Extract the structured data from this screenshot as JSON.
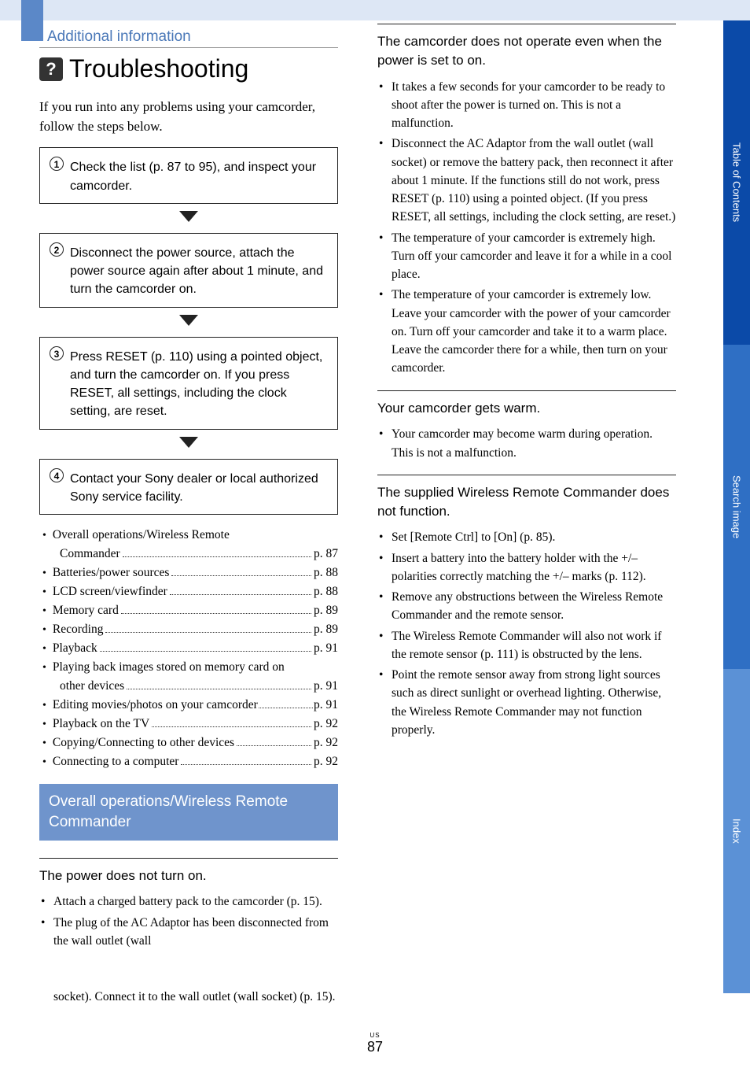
{
  "header": {
    "section_label": "Additional information",
    "title": "Troubleshooting",
    "icon_glyph": "?"
  },
  "intro": "If you run into any problems using your camcorder, follow the steps below.",
  "steps": [
    {
      "num": "1",
      "text": "Check the list (p. 87 to 95), and inspect your camcorder."
    },
    {
      "num": "2",
      "text": "Disconnect the power source, attach the power source again after about 1 minute, and turn the camcorder on."
    },
    {
      "num": "3",
      "text": "Press RESET (p. 110) using a pointed object, and turn the camcorder on. If you press RESET, all settings, including the clock setting, are reset."
    },
    {
      "num": "4",
      "text": "Contact your Sony dealer or local authorized Sony service facility."
    }
  ],
  "toc": [
    {
      "label": "Overall operations/Wireless Remote Commander",
      "page": "p. 87",
      "wrap_after": "Commander"
    },
    {
      "label": "Batteries/power sources ",
      "page": "p. 88"
    },
    {
      "label": "LCD screen/viewfinder",
      "page": "p. 88"
    },
    {
      "label": "Memory card",
      "page": "p. 89"
    },
    {
      "label": "Recording",
      "page": "p. 89"
    },
    {
      "label": "Playback",
      "page": "p. 91"
    },
    {
      "label": "Playing back images stored on memory card on other devices",
      "page": "p. 91",
      "wrap_after": "other devices"
    },
    {
      "label": "Editing movies/photos on your camcorder",
      "page": "p. 91",
      "tight": true
    },
    {
      "label": "Playback on the TV",
      "page": "p. 92"
    },
    {
      "label": "Copying/Connecting to other devices",
      "page": "p. 92"
    },
    {
      "label": "Connecting to a computer",
      "page": "p. 92"
    }
  ],
  "subsection_heading": "Overall operations/Wireless Remote Commander",
  "col2_continuation": "socket). Connect it to the wall outlet (wall socket) (p. 15).",
  "problems": [
    {
      "title": "The power does not turn on.",
      "items": [
        "Attach a charged battery pack to the camcorder (p. 15).",
        "The plug of the AC Adaptor has been disconnected from the wall outlet (wall"
      ]
    },
    {
      "title": "The camcorder does not operate even when the power is set to on.",
      "items": [
        "It takes a few seconds for your camcorder to be ready to shoot after the power is turned on. This is not a malfunction.",
        "Disconnect the AC Adaptor from the wall outlet (wall socket) or remove the battery pack, then reconnect it after about 1 minute. If the functions still do not work, press RESET (p. 110) using a pointed object. (If you press RESET, all settings, including the clock setting, are reset.)",
        "The temperature of your camcorder is extremely high. Turn off your camcorder and leave it for a while in a cool place.",
        "The temperature of your camcorder is extremely low. Leave your camcorder with the power of your camcorder on. Turn off your camcorder and take it to a warm place. Leave the camcorder there for a while, then turn on your camcorder."
      ]
    },
    {
      "title": "Your camcorder gets warm.",
      "items": [
        "Your camcorder may become warm during operation. This is not a malfunction."
      ]
    },
    {
      "title": "The supplied Wireless Remote Commander does not function.",
      "items": [
        "Set [Remote Ctrl] to [On] (p. 85).",
        "Insert a battery into the battery holder with the +/– polarities correctly matching the +/– marks (p. 112).",
        "Remove any obstructions between the Wireless Remote Commander and the remote sensor.",
        "The Wireless Remote Commander will also not work if the remote sensor (p. 111) is obstructed by the lens.",
        "Point the remote sensor away from strong light sources such as direct sunlight or overhead lighting. Otherwise, the Wireless Remote Commander may not function properly."
      ]
    }
  ],
  "side_tabs": [
    "Table of Contents",
    "Search image",
    "Index"
  ],
  "footer": {
    "region": "US",
    "page": "87"
  },
  "colors": {
    "topbar": "#dde7f5",
    "spine": "#5b88c8",
    "section_label": "#4a78b8",
    "subhead_bg": "#6f94cc",
    "tab1": "#0b4aa8",
    "tab2": "#2f6fc4",
    "tab3": "#5b91d6"
  }
}
